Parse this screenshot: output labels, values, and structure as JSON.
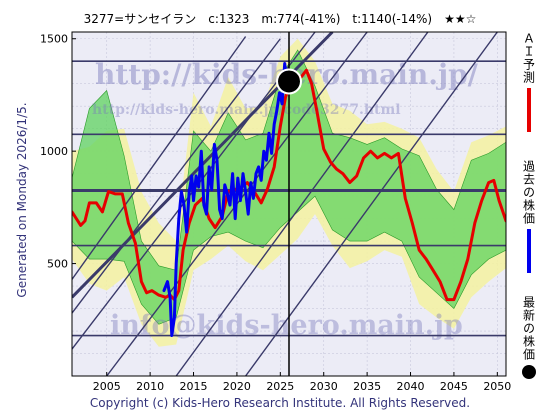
{
  "header": {
    "title": "3277=サンセイラン　c:1323　m:774(-41%)　t:1140(-14%)　★★☆"
  },
  "side_text": "Generated on Monday 2026/1/5.",
  "copyright": "Copyright (c) Kids-Hero Research Institute. All Rights Reserved.",
  "watermarks": {
    "main": "http://kids-hero.main.jp/",
    "sub": "http://kids-hero.main.jp/code3277.html",
    "mail": "info@kids-hero.main.jp"
  },
  "legend": {
    "ai": "ＡＩ予測",
    "past": "過去の株価",
    "latest": "最新の株価"
  },
  "colors": {
    "ai_forecast": "#e60000",
    "past_price": "#0000ee",
    "latest_marker": "#000000",
    "band_green": "#5fd35f",
    "band_yellow": "#f4f2a0",
    "grid_line": "#3a3a6a",
    "background": "#ececf6"
  },
  "chart_data": {
    "type": "line",
    "title": "3277=サンセイラン　c:1323　m:774(-41%)　t:1140(-14%)　★★☆",
    "xlim": [
      2001,
      2051
    ],
    "ylim": [
      0,
      1530
    ],
    "x_ticks": [
      2005,
      2010,
      2015,
      2020,
      2025,
      2030,
      2035,
      2040,
      2045,
      2050
    ],
    "y_ticks": [
      500,
      1000,
      1500
    ],
    "grid": true,
    "current_value": 1323,
    "m_value": 774,
    "t_value": 1140,
    "latest_point": {
      "x": 2026.0,
      "y": 1310
    },
    "reference_levels": [
      1400,
      1075,
      825,
      580,
      180
    ],
    "bold_reference_level": 825,
    "trend_lines": [
      {
        "x0": 2001,
        "y0": 120,
        "x1": 2029,
        "y1": 1530
      },
      {
        "x0": 2001,
        "y0": 280,
        "x1": 2025,
        "y1": 1500
      },
      {
        "x0": 2001,
        "y0": 430,
        "x1": 2021,
        "y1": 1510
      },
      {
        "x0": 2005,
        "y0": 0,
        "x1": 2035,
        "y1": 1530
      },
      {
        "x0": 2013,
        "y0": 0,
        "x1": 2042,
        "y1": 1530
      },
      {
        "x0": 2021,
        "y0": 0,
        "x1": 2050,
        "y1": 1530
      }
    ],
    "bold_trend_line": {
      "x0": 2001,
      "y0": 350,
      "x1": 2031,
      "y1": 1530
    },
    "series": [
      {
        "name": "ＡＩ予測",
        "x": [
          2001.0,
          2002.0,
          2002.5,
          2003.0,
          2003.8,
          2004.5,
          2005.2,
          2006.0,
          2006.8,
          2007.5,
          2008.3,
          2009.0,
          2009.6,
          2010.2,
          2011.0,
          2011.8,
          2012.3,
          2012.8,
          2013.3,
          2013.8,
          2014.5,
          2015.2,
          2016.0,
          2016.8,
          2017.5,
          2018.3,
          2019.0,
          2019.8,
          2020.5,
          2021.2,
          2022.0,
          2022.8,
          2023.5,
          2024.3,
          2025.0,
          2025.6,
          2026.2,
          2026.8,
          2027.4,
          2028.0,
          2028.6,
          2029.2,
          2030.0,
          2030.8,
          2031.5,
          2032.2,
          2033.0,
          2033.8,
          2034.6,
          2035.4,
          2036.2,
          2037.0,
          2037.8,
          2038.6,
          2039.4,
          2040.2,
          2041.0,
          2041.8,
          2042.6,
          2043.4,
          2044.2,
          2045.0,
          2045.8,
          2046.6,
          2047.4,
          2048.2,
          2049.0,
          2049.6,
          2050.2,
          2051.0
        ],
        "y": [
          730,
          670,
          690,
          770,
          770,
          730,
          820,
          810,
          810,
          680,
          590,
          420,
          370,
          380,
          360,
          350,
          360,
          340,
          380,
          560,
          680,
          760,
          790,
          700,
          660,
          710,
          820,
          830,
          840,
          860,
          820,
          770,
          830,
          930,
          1110,
          1240,
          1300,
          1330,
          1330,
          1360,
          1300,
          1180,
          1010,
          950,
          920,
          900,
          860,
          890,
          970,
          1000,
          970,
          990,
          970,
          990,
          790,
          680,
          560,
          520,
          470,
          420,
          340,
          340,
          420,
          520,
          680,
          780,
          860,
          870,
          780,
          690
        ],
        "color": "#e60000"
      },
      {
        "name": "過去の株価",
        "x": [
          2011.6,
          2012.0,
          2012.3,
          2012.5,
          2012.8,
          2013.0,
          2013.3,
          2013.6,
          2013.9,
          2014.2,
          2014.5,
          2014.8,
          2015.0,
          2015.3,
          2015.6,
          2015.9,
          2016.2,
          2016.5,
          2016.8,
          2017.1,
          2017.4,
          2017.7,
          2018.0,
          2018.3,
          2018.6,
          2018.9,
          2019.2,
          2019.5,
          2019.8,
          2020.1,
          2020.4,
          2020.7,
          2021.0,
          2021.3,
          2021.6,
          2021.9,
          2022.2,
          2022.5,
          2022.8,
          2023.1,
          2023.4,
          2023.7,
          2024.0,
          2024.3,
          2024.6,
          2024.9,
          2025.2,
          2025.5,
          2025.8,
          2026.0
        ],
        "y": [
          380,
          420,
          350,
          180,
          260,
          500,
          700,
          820,
          760,
          640,
          820,
          890,
          780,
          890,
          840,
          1000,
          760,
          720,
          930,
          830,
          1030,
          960,
          740,
          700,
          850,
          810,
          760,
          900,
          700,
          880,
          780,
          900,
          820,
          720,
          860,
          790,
          900,
          930,
          870,
          1000,
          960,
          1080,
          990,
          1120,
          1180,
          1260,
          1210,
          1390,
          1300,
          1310
        ],
        "color": "#0000ee"
      }
    ],
    "bands": [
      {
        "name": "yellow",
        "x": [
          2001,
          2003,
          2005,
          2007,
          2009,
          2011,
          2013,
          2015,
          2017,
          2019,
          2021,
          2023,
          2025,
          2027,
          2029,
          2031,
          2033,
          2035,
          2037,
          2039,
          2041,
          2043,
          2045,
          2047,
          2049,
          2051
        ],
        "upper": [
          1000,
          1020,
          1090,
          1100,
          820,
          680,
          600,
          1260,
          1110,
          1330,
          1190,
          1200,
          1420,
          1500,
          1400,
          1210,
          1180,
          1120,
          1130,
          1100,
          1060,
          920,
          820,
          1040,
          1070,
          1110
        ],
        "lower": [
          520,
          410,
          380,
          440,
          230,
          130,
          140,
          470,
          520,
          580,
          510,
          470,
          540,
          610,
          720,
          580,
          480,
          510,
          560,
          530,
          320,
          260,
          210,
          350,
          420,
          480
        ]
      },
      {
        "name": "green",
        "x": [
          2001,
          2003,
          2005,
          2007,
          2009,
          2011,
          2013,
          2015,
          2017,
          2019,
          2021,
          2023,
          2025,
          2027,
          2029,
          2031,
          2033,
          2035,
          2037,
          2039,
          2041,
          2043,
          2045,
          2047,
          2049,
          2051
        ],
        "upper": [
          880,
          1190,
          1270,
          980,
          600,
          490,
          470,
          1090,
          1000,
          1170,
          1050,
          1080,
          1330,
          1450,
          1290,
          1080,
          1060,
          1030,
          1060,
          1010,
          980,
          830,
          740,
          960,
          990,
          1040
        ],
        "lower": [
          600,
          520,
          520,
          510,
          320,
          230,
          260,
          560,
          620,
          640,
          600,
          570,
          660,
          730,
          800,
          650,
          600,
          600,
          640,
          600,
          440,
          370,
          300,
          450,
          520,
          560
        ]
      }
    ]
  }
}
